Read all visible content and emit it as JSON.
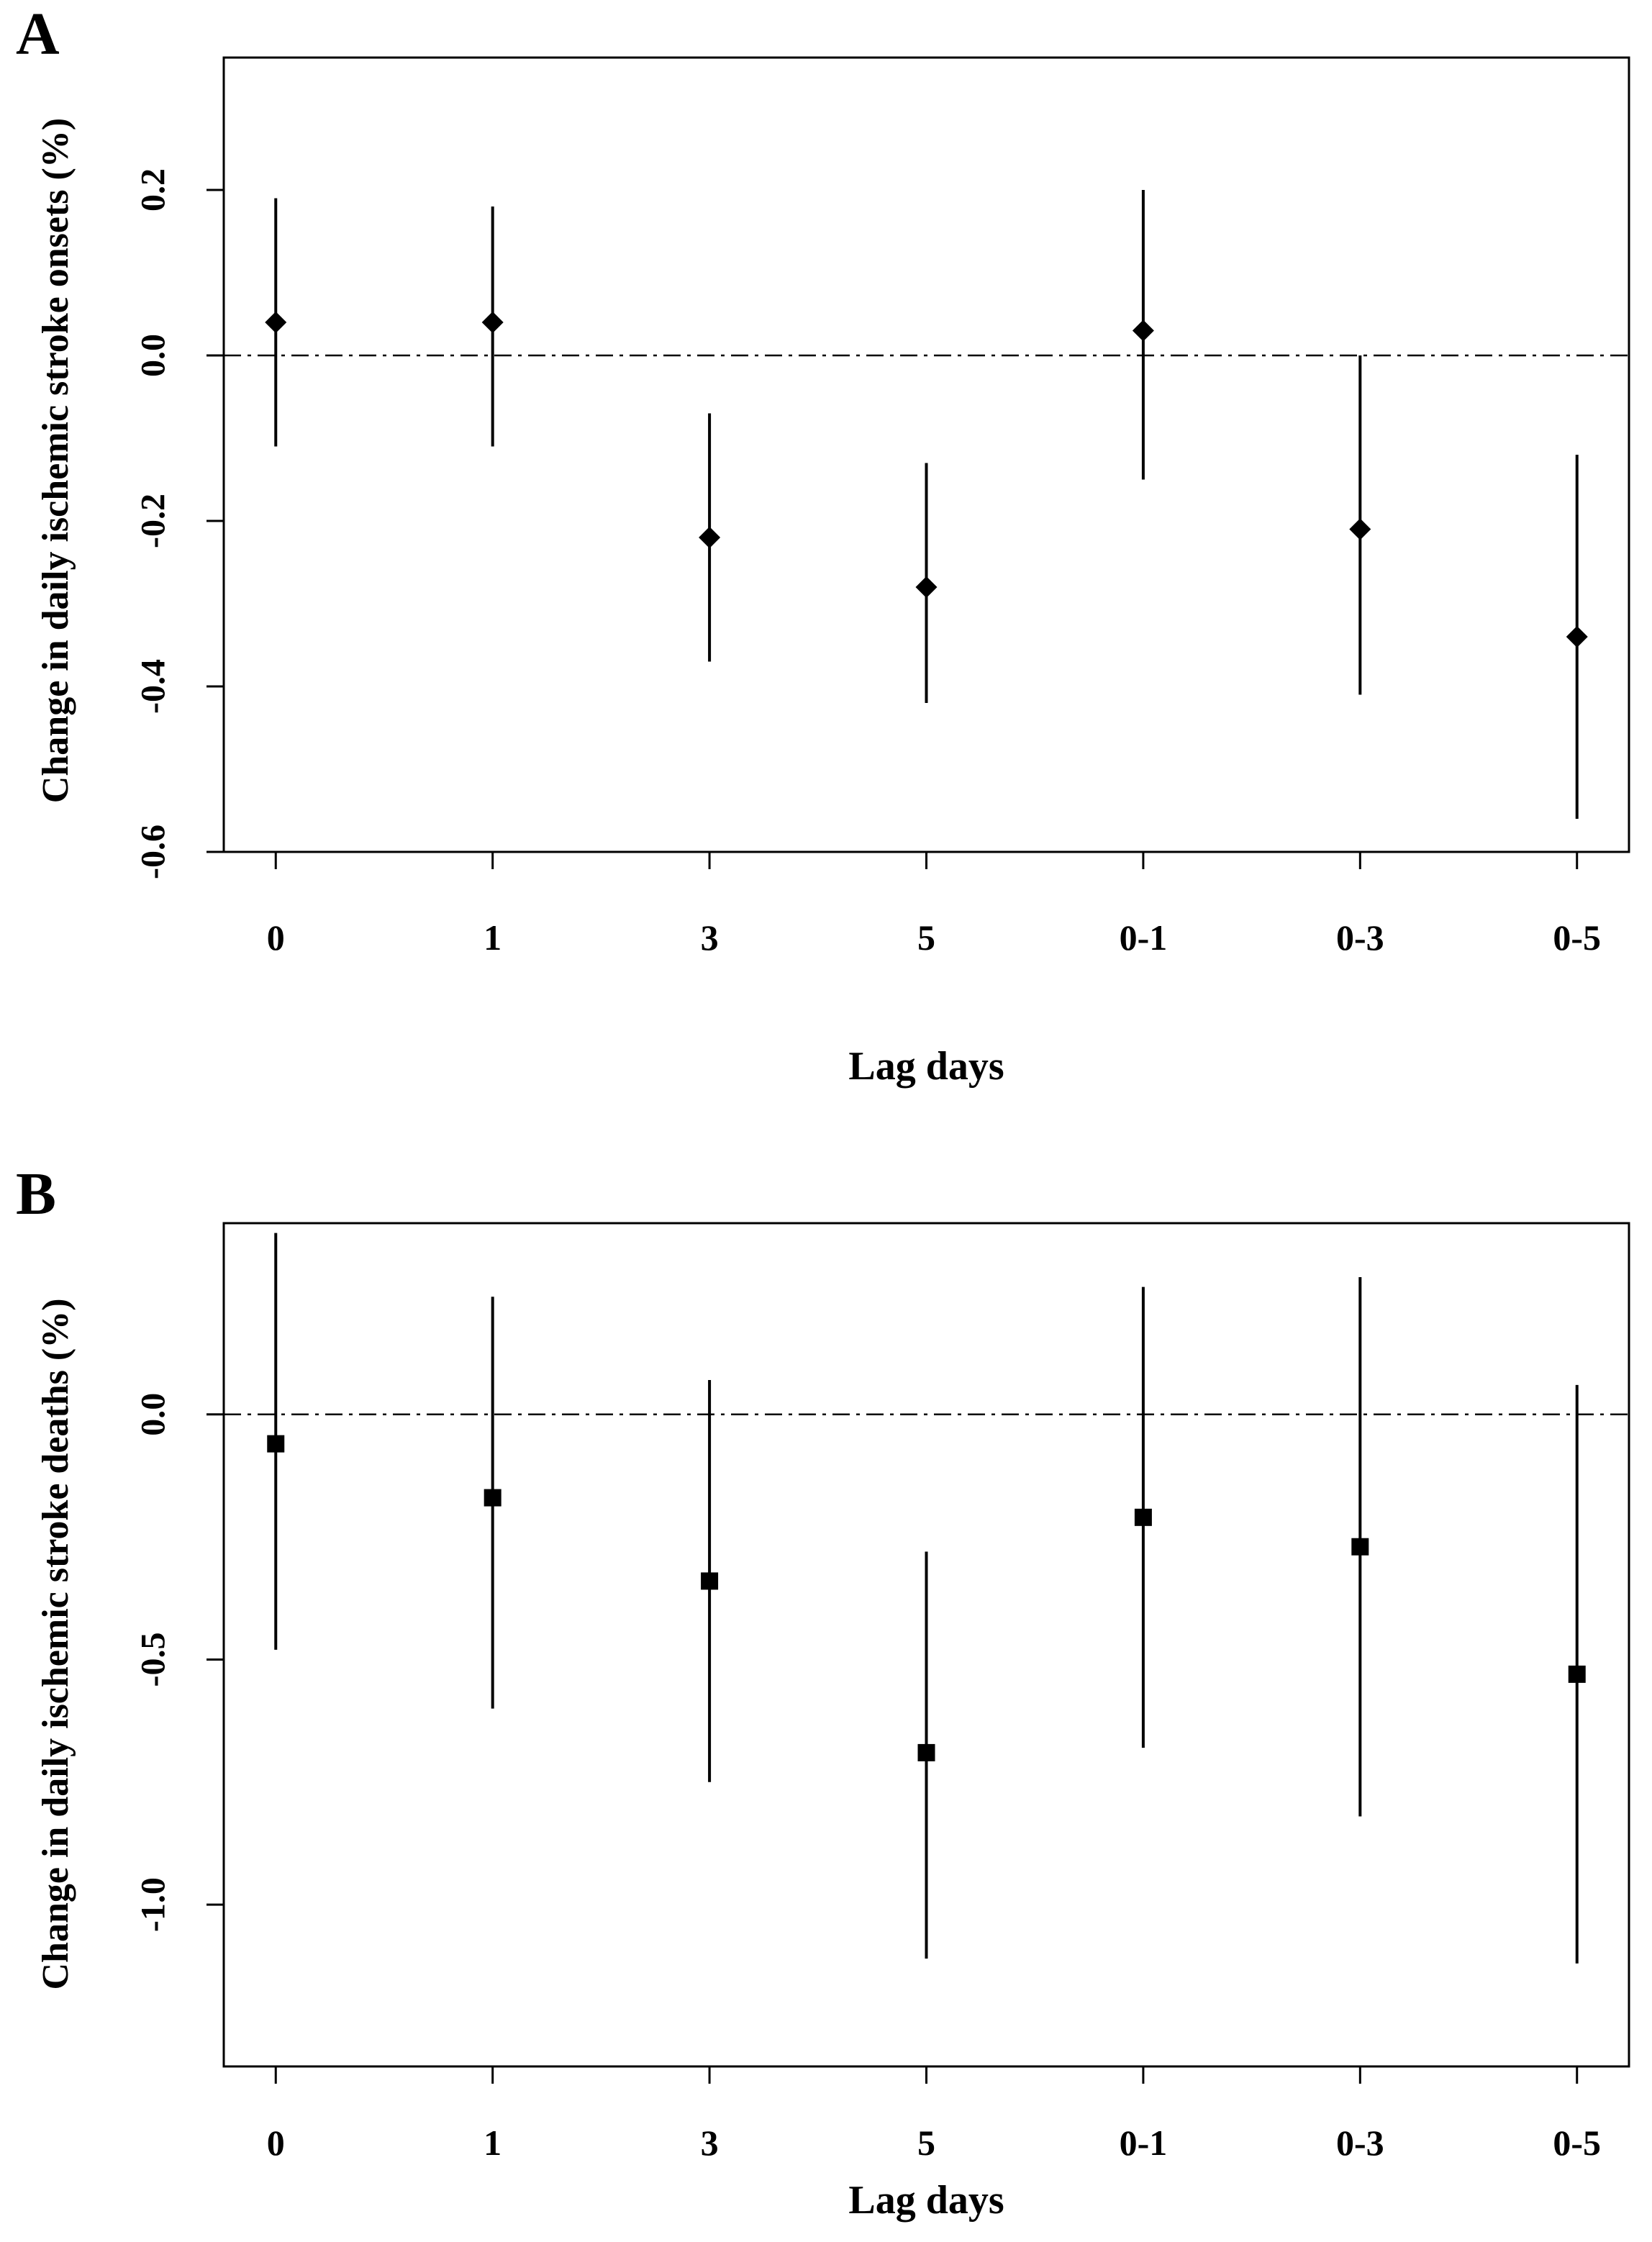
{
  "figure": {
    "background_color": "#ffffff",
    "foreground_color": "#000000",
    "description_visible_text_only": true
  },
  "chart_data": [
    {
      "type": "errorbar",
      "panel_label": "A",
      "categories": [
        "0",
        "1",
        "3",
        "5",
        "0-1",
        "0-3",
        "0-5"
      ],
      "xlabel": "Lag days",
      "ylabel": "Change in daily ischemic stroke onsets (%)",
      "ytick_labels": [
        "0.2",
        "0.0",
        "-0.2",
        "-0.4",
        "-0.6"
      ],
      "ytick_values": [
        0.2,
        0.0,
        -0.2,
        -0.4,
        -0.6
      ],
      "ylim": [
        -0.6,
        0.36
      ],
      "reference_line": 0.0,
      "reference_line_style": "dash-dot",
      "marker": "diamond",
      "grid": false,
      "legend": "none",
      "estimates": [
        0.04,
        0.04,
        -0.22,
        -0.28,
        0.03,
        -0.21,
        -0.34
      ],
      "ci_low": [
        -0.11,
        -0.11,
        -0.37,
        -0.42,
        -0.15,
        -0.41,
        -0.56
      ],
      "ci_high": [
        0.19,
        0.18,
        -0.07,
        -0.13,
        0.2,
        0.0,
        -0.12
      ]
    },
    {
      "type": "errorbar",
      "panel_label": "B",
      "categories": [
        "0",
        "1",
        "3",
        "5",
        "0-1",
        "0-3",
        "0-5"
      ],
      "xlabel": "Lag days",
      "ylabel": "Change in daily ischemic stroke deaths (%)",
      "ytick_labels": [
        "0.0",
        "-0.5",
        "-1.0"
      ],
      "ytick_values": [
        0.0,
        -0.5,
        -1.0
      ],
      "ylim": [
        -1.33,
        0.39
      ],
      "reference_line": 0.0,
      "reference_line_style": "dash-dot",
      "marker": "square",
      "grid": false,
      "legend": "none",
      "estimates": [
        -0.06,
        -0.17,
        -0.34,
        -0.69,
        -0.21,
        -0.27,
        -0.53
      ],
      "ci_low": [
        -0.48,
        -0.6,
        -0.75,
        -1.11,
        -0.68,
        -0.82,
        -1.12
      ],
      "ci_high": [
        0.37,
        0.24,
        0.07,
        -0.28,
        0.26,
        0.28,
        0.06
      ]
    }
  ]
}
